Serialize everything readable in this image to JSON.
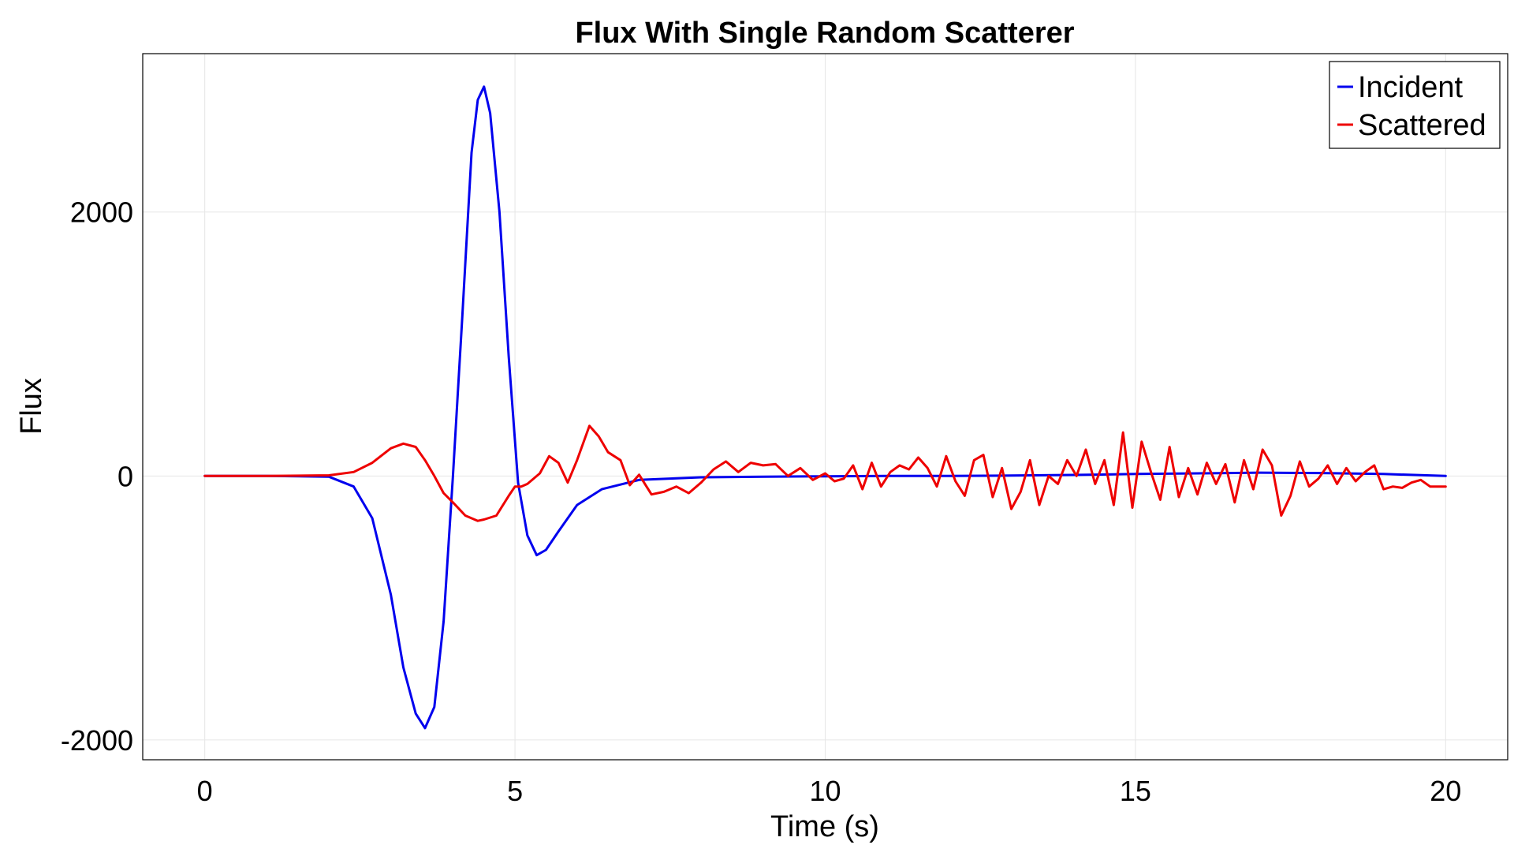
{
  "chart_data": {
    "type": "line",
    "title": "Flux With Single Random Scatterer",
    "xlabel": "Time (s)",
    "ylabel": "Flux",
    "xlim": [
      -1,
      21
    ],
    "ylim": [
      -2150,
      3200
    ],
    "xticks": [
      0,
      5,
      10,
      15,
      20
    ],
    "xtick_labels": [
      "0",
      "5",
      "10",
      "15",
      "20"
    ],
    "yticks": [
      -2000,
      0,
      2000
    ],
    "ytick_labels": [
      "-2000",
      "0",
      "2000"
    ],
    "grid": true,
    "legend_position": "top-right",
    "series": [
      {
        "name": "Incident",
        "color": "#0000ee",
        "x": [
          0,
          1.0,
          2.0,
          2.4,
          2.7,
          3.0,
          3.2,
          3.4,
          3.55,
          3.7,
          3.85,
          4.0,
          4.15,
          4.3,
          4.4,
          4.5,
          4.6,
          4.75,
          4.9,
          5.05,
          5.2,
          5.35,
          5.5,
          5.7,
          6.0,
          6.4,
          7.0,
          8.0,
          9.0,
          10.0,
          11.0,
          12.0,
          13.0,
          14.0,
          15.0,
          16.0,
          17.0,
          18.0,
          19.0,
          20.0
        ],
        "values": [
          0,
          0,
          -5,
          -80,
          -320,
          -900,
          -1450,
          -1800,
          -1910,
          -1750,
          -1100,
          0,
          1200,
          2450,
          2850,
          2950,
          2750,
          2000,
          900,
          -50,
          -450,
          -600,
          -560,
          -420,
          -220,
          -100,
          -30,
          -10,
          -5,
          -2,
          0,
          0,
          3,
          8,
          15,
          20,
          25,
          22,
          15,
          0
        ]
      },
      {
        "name": "Scattered",
        "color": "#ee0000",
        "x": [
          0,
          1.0,
          2.0,
          2.4,
          2.7,
          3.0,
          3.2,
          3.4,
          3.55,
          3.7,
          3.85,
          4.0,
          4.2,
          4.4,
          4.5,
          4.7,
          4.9,
          5.0,
          5.1,
          5.2,
          5.4,
          5.55,
          5.7,
          5.85,
          6.0,
          6.2,
          6.35,
          6.5,
          6.7,
          6.85,
          7.0,
          7.2,
          7.4,
          7.6,
          7.8,
          8.0,
          8.2,
          8.4,
          8.6,
          8.8,
          9.0,
          9.2,
          9.4,
          9.6,
          9.8,
          10.0,
          10.15,
          10.3,
          10.45,
          10.6,
          10.75,
          10.9,
          11.05,
          11.2,
          11.35,
          11.5,
          11.65,
          11.8,
          11.95,
          12.1,
          12.25,
          12.4,
          12.55,
          12.7,
          12.85,
          13.0,
          13.15,
          13.3,
          13.45,
          13.6,
          13.75,
          13.9,
          14.05,
          14.2,
          14.35,
          14.5,
          14.65,
          14.8,
          14.95,
          15.1,
          15.25,
          15.4,
          15.55,
          15.7,
          15.85,
          16.0,
          16.15,
          16.3,
          16.45,
          16.6,
          16.75,
          16.9,
          17.05,
          17.2,
          17.35,
          17.5,
          17.65,
          17.8,
          17.95,
          18.1,
          18.25,
          18.4,
          18.55,
          18.7,
          18.85,
          19.0,
          19.15,
          19.3,
          19.45,
          19.6,
          19.75,
          19.9,
          20.0
        ],
        "values": [
          0,
          0,
          5,
          30,
          100,
          210,
          245,
          220,
          120,
          0,
          -130,
          -200,
          -300,
          -340,
          -330,
          -300,
          -150,
          -80,
          -80,
          -60,
          20,
          150,
          100,
          -50,
          120,
          380,
          300,
          180,
          120,
          -70,
          10,
          -140,
          -120,
          -80,
          -130,
          -50,
          50,
          110,
          30,
          100,
          80,
          90,
          0,
          60,
          -30,
          20,
          -40,
          -20,
          80,
          -100,
          100,
          -80,
          30,
          80,
          50,
          140,
          60,
          -80,
          150,
          -40,
          -150,
          120,
          160,
          -160,
          60,
          -250,
          -120,
          120,
          -220,
          0,
          -60,
          120,
          0,
          200,
          -60,
          120,
          -220,
          330,
          -240,
          260,
          30,
          -180,
          220,
          -160,
          60,
          -140,
          100,
          -60,
          90,
          -200,
          120,
          -100,
          200,
          80,
          -300,
          -150,
          110,
          -80,
          -20,
          80,
          -60,
          60,
          -40,
          30,
          80,
          -100,
          -80,
          -90,
          -50,
          -30,
          -80,
          -80,
          -80
        ]
      }
    ]
  }
}
